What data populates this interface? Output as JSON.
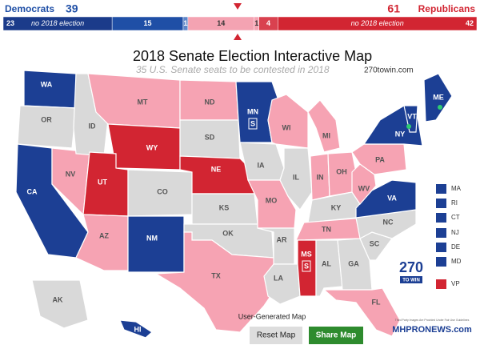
{
  "header": {
    "dem_label": "Democrats",
    "dem_total": 39,
    "rep_label": "Republicans",
    "rep_total": 61,
    "segments": [
      {
        "value": 23,
        "text": "no 2018 election",
        "color": "#1b3b8a"
      },
      {
        "value": 15,
        "color": "#1f4fa6"
      },
      {
        "value": 1,
        "color": "#5f86c9"
      },
      {
        "value": 14,
        "color": "#f4a3b2"
      },
      {
        "value": 1,
        "color": "#f4a3b2"
      },
      {
        "value": 4,
        "color": "#d9414f"
      },
      {
        "value": 42,
        "text": "no 2018 election",
        "color": "#d22532"
      }
    ]
  },
  "title": "2018 Senate Election Interactive Map",
  "subtitle": "35 U.S. Senate seats to be contested in 2018",
  "site": "270towin.com",
  "status_colors": {
    "D": "#1c3f94",
    "R": "#d22532",
    "LR": "#f6a3b3",
    "N": "#d9d9d9"
  },
  "states": [
    {
      "label": "WA",
      "status": "D"
    },
    {
      "label": "OR",
      "status": "N"
    },
    {
      "label": "CA",
      "status": "D"
    },
    {
      "label": "NV",
      "status": "LR"
    },
    {
      "label": "ID",
      "status": "N"
    },
    {
      "label": "MT",
      "status": "LR"
    },
    {
      "label": "WY",
      "status": "R"
    },
    {
      "label": "UT",
      "status": "R"
    },
    {
      "label": "AZ",
      "status": "LR"
    },
    {
      "label": "CO",
      "status": "N"
    },
    {
      "label": "NM",
      "status": "D"
    },
    {
      "label": "ND",
      "status": "LR"
    },
    {
      "label": "SD",
      "status": "N"
    },
    {
      "label": "NE",
      "status": "R"
    },
    {
      "label": "KS",
      "status": "N"
    },
    {
      "label": "OK",
      "status": "N"
    },
    {
      "label": "TX",
      "status": "LR"
    },
    {
      "label": "MN",
      "status": "D"
    },
    {
      "label": "IA",
      "status": "N"
    },
    {
      "label": "MO",
      "status": "LR"
    },
    {
      "label": "AR",
      "status": "N"
    },
    {
      "label": "LA",
      "status": "N"
    },
    {
      "label": "WI",
      "status": "LR"
    },
    {
      "label": "IL",
      "status": "N"
    },
    {
      "label": "MS",
      "status": "R"
    },
    {
      "label": "MI",
      "status": "LR"
    },
    {
      "label": "IN",
      "status": "LR"
    },
    {
      "label": "OH",
      "status": "LR"
    },
    {
      "label": "KY",
      "status": "N"
    },
    {
      "label": "TN",
      "status": "LR"
    },
    {
      "label": "AL",
      "status": "N"
    },
    {
      "label": "GA",
      "status": "N"
    },
    {
      "label": "FL",
      "status": "LR"
    },
    {
      "label": "SC",
      "status": "N"
    },
    {
      "label": "NC",
      "status": "N"
    },
    {
      "label": "VA",
      "status": "D"
    },
    {
      "label": "WV",
      "status": "LR"
    },
    {
      "label": "PA",
      "status": "LR"
    },
    {
      "label": "NY",
      "status": "D"
    },
    {
      "label": "VT",
      "status": "D"
    },
    {
      "label": "ME",
      "status": "D"
    },
    {
      "label": "AK",
      "status": "N"
    },
    {
      "label": "HI",
      "status": "D"
    }
  ],
  "special_marker": "S",
  "small_states": [
    {
      "label": "MA",
      "status": "D"
    },
    {
      "label": "RI",
      "status": "D"
    },
    {
      "label": "CT",
      "status": "D"
    },
    {
      "label": "NJ",
      "status": "D"
    },
    {
      "label": "DE",
      "status": "D"
    },
    {
      "label": "MD",
      "status": "D"
    },
    {
      "label": "VP",
      "status": "R"
    }
  ],
  "logo": {
    "top": "270",
    "bottom": "TO WIN"
  },
  "footer": {
    "caption": "User-Generated Map",
    "reset": "Reset Map",
    "share": "Share Map"
  },
  "watermark": {
    "note": "Third Party Images Are Provided Under Fair Use Guidelines",
    "brand": "MHPRONEWS.com"
  }
}
